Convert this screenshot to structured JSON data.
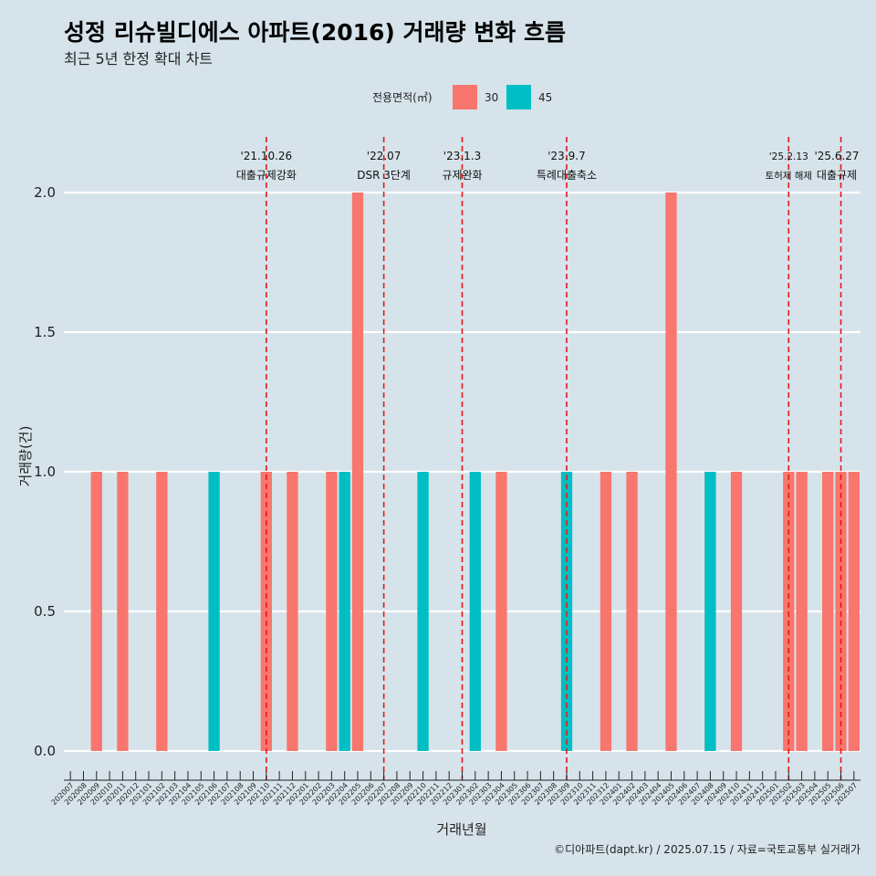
{
  "header": {
    "title": "성정 리슈빌디에스 아파트(2016) 거래량 변화 흐름",
    "subtitle": "최근 5년 한정 확대 차트"
  },
  "caption": "©디아파트(dapt.kr) / 2025.07.15 / 자료=국토교통부 실거래가",
  "colors": {
    "background": "#d6e3ea",
    "area_30": "#f8766d",
    "area_45": "#00bfc4",
    "event_line": "#e31a1c",
    "grid": "#ffffff"
  },
  "chart_data": {
    "type": "bar",
    "xlabel": "거래년월",
    "ylabel": "거래량(건)",
    "ylim": [
      0,
      2
    ],
    "yticks": [
      "0.0",
      "0.5",
      "1.0",
      "1.5",
      "2.0"
    ],
    "ytick_values": [
      0,
      0.5,
      1.0,
      1.5,
      2.0
    ],
    "grid": true,
    "legend": {
      "title": "전용면적(㎡)",
      "position": "top",
      "entries": [
        "30",
        "45"
      ]
    },
    "categories": [
      "202007",
      "202008",
      "202009",
      "202010",
      "202011",
      "202012",
      "202101",
      "202102",
      "202103",
      "202104",
      "202105",
      "202106",
      "202107",
      "202108",
      "202109",
      "202110",
      "202111",
      "202112",
      "202201",
      "202202",
      "202203",
      "202204",
      "202205",
      "202206",
      "202207",
      "202208",
      "202209",
      "202210",
      "202211",
      "202212",
      "202301",
      "202302",
      "202303",
      "202304",
      "202305",
      "202306",
      "202307",
      "202308",
      "202309",
      "202310",
      "202311",
      "202312",
      "202401",
      "202402",
      "202403",
      "202404",
      "202405",
      "202406",
      "202407",
      "202408",
      "202409",
      "202410",
      "202411",
      "202412",
      "202501",
      "202502",
      "202503",
      "202504",
      "202505",
      "202506",
      "202507"
    ],
    "series": [
      {
        "name": "30",
        "values": [
          0,
          0,
          1,
          0,
          1,
          0,
          0,
          1,
          0,
          0,
          0,
          0,
          0,
          0,
          0,
          1,
          0,
          1,
          0,
          0,
          1,
          0,
          2,
          0,
          0,
          0,
          0,
          0,
          0,
          0,
          0,
          0,
          0,
          1,
          0,
          0,
          0,
          0,
          0,
          0,
          0,
          1,
          0,
          1,
          0,
          0,
          2,
          0,
          0,
          1,
          0,
          1,
          0,
          0,
          0,
          1,
          1,
          0,
          1,
          1,
          1
        ]
      },
      {
        "name": "45",
        "values": [
          0,
          0,
          0,
          0,
          0,
          0,
          0,
          0,
          0,
          0,
          0,
          1,
          0,
          0,
          0,
          0,
          0,
          0,
          0,
          0,
          0,
          1,
          0,
          0,
          0,
          0,
          0,
          1,
          0,
          0,
          0,
          1,
          0,
          0,
          0,
          0,
          0,
          0,
          1,
          0,
          0,
          0,
          0,
          0,
          0,
          0,
          0,
          0,
          0,
          1,
          0,
          0,
          0,
          0,
          0,
          0,
          0,
          0,
          0,
          0,
          0
        ]
      }
    ],
    "events": [
      {
        "date": "'21.10.26",
        "label": "대출규제강화",
        "month": "202110"
      },
      {
        "date": "'22.07",
        "label": "DSR 3단계",
        "month": "202207"
      },
      {
        "date": "'23.1.3",
        "label": "규제완화",
        "month": "202301"
      },
      {
        "date": "'23.9.7",
        "label": "특례대출축소",
        "month": "202309"
      },
      {
        "date": "'25.2.13",
        "label": "토허제 해제",
        "month": "202502"
      },
      {
        "date": "'25.6.27",
        "label": "대출규제",
        "month": "202506"
      }
    ]
  }
}
